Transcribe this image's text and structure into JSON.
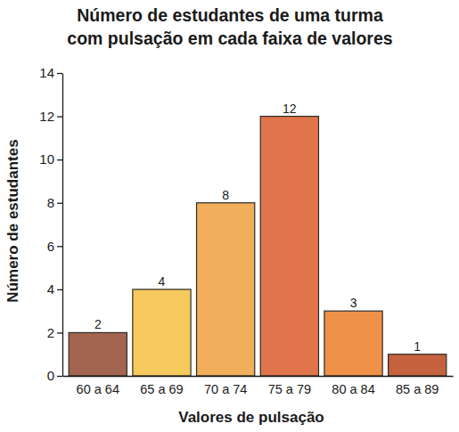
{
  "chart_data": {
    "type": "bar",
    "title": "Número de estudantes de uma turma\ncom pulsação em cada faixa de valores",
    "xlabel": "Valores de pulsação",
    "ylabel": "Número de estudantes",
    "categories": [
      "60 a 64",
      "65 a 69",
      "70 a 74",
      "75 a 79",
      "80 a 84",
      "85 a 89"
    ],
    "values": [
      2,
      4,
      8,
      12,
      3,
      1
    ],
    "colors": [
      "#a3654f",
      "#f6c95c",
      "#f1ae5b",
      "#e0744a",
      "#ef9148",
      "#c5623e"
    ],
    "ylim": [
      0,
      14
    ],
    "yticks": [
      0,
      2,
      4,
      6,
      8,
      10,
      12,
      14
    ],
    "grid": false,
    "data_labels": true
  }
}
